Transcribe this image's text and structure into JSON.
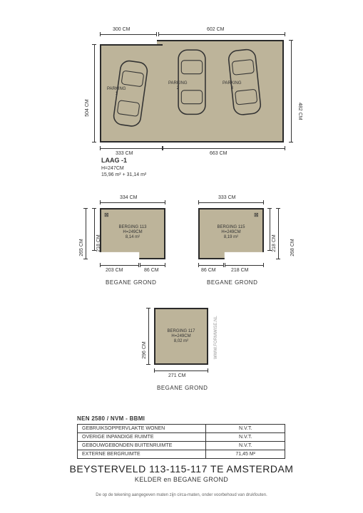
{
  "colors": {
    "fill": "#bdb49a",
    "wall": "#2a2a2a",
    "text": "#333333",
    "bg": "#ffffff"
  },
  "garage": {
    "dims": {
      "top_left": "300 CM",
      "top_right": "602 CM",
      "left": "504 CM",
      "right": "482 CM",
      "bottom_left": "333 CM",
      "bottom_right": "663 CM"
    },
    "parking": {
      "p1": "PARKING\n1",
      "p2": "PARKING\n2",
      "p3": "PARKING\n3"
    },
    "level": {
      "title": "LAAG -1",
      "height": "H=247CM",
      "area": "15,96 m² + 31,14 m²"
    }
  },
  "berging113": {
    "name": "BERGING 113",
    "height": "H=249CM",
    "area": "8,14 m²",
    "dims": {
      "top": "334 CM",
      "left_out": "265 CM",
      "left_in": "218 CM",
      "bottom_left": "203 CM",
      "bottom_right": "86 CM"
    },
    "section": "BEGANE GROND"
  },
  "berging115": {
    "name": "BERGING 115",
    "height": "H=249CM",
    "area": "8,19 m²",
    "dims": {
      "top": "333 CM",
      "right_in": "218 CM",
      "right_out": "268 CM",
      "bottom_left": "86 CM",
      "bottom_right": "218 CM"
    },
    "section": "BEGANE GROND"
  },
  "berging117": {
    "name": "BERGING 117",
    "height": "H=249CM",
    "area": "8,02 m²",
    "dims": {
      "left": "296 CM",
      "bottom": "271 CM"
    },
    "section": "BEGANE GROND"
  },
  "watermark": "WWW.FORMWISE.NL",
  "table": {
    "header": "NEN 2580 / NVM - BBMI",
    "rows": [
      {
        "label": "GEBRUIKSOPPERVLAKTE WONEN",
        "value": "N.V.T."
      },
      {
        "label": "OVERIGE INPANDIGE RUIMTE",
        "value": "N.V.T."
      },
      {
        "label": "GEBOUWGEBONDEN BUITENRUIMTE",
        "value": "N.V.T."
      },
      {
        "label": "EXTERNE BERGRUIMTE",
        "value": "71,45 M²"
      }
    ]
  },
  "title": {
    "line1": "BEYSTERVELD 113-115-117 TE AMSTERDAM",
    "line2": "KELDER en BEGANE GROND"
  },
  "disclaimer": "De op de tekening aangegeven maten zijn circa-maten, onder voorbehoud van drukfouten."
}
